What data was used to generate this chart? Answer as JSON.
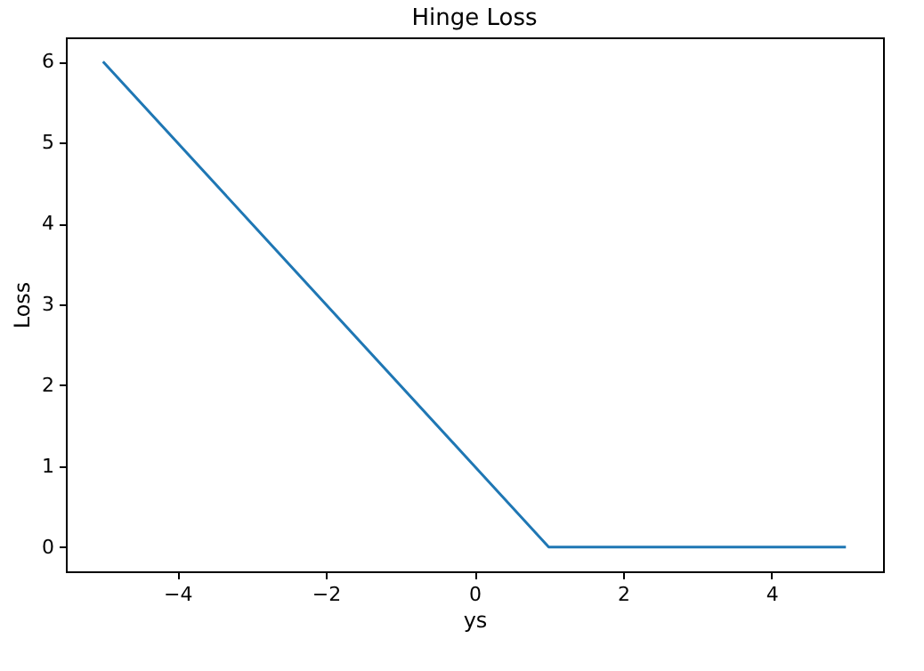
{
  "chart_data": {
    "type": "line",
    "title": "Hinge Loss",
    "xlabel": "ys",
    "ylabel": "Loss",
    "x": [
      -5,
      1,
      5
    ],
    "series": [
      {
        "color": "#1f77b4",
        "values": [
          6,
          0,
          0
        ]
      }
    ],
    "xlim": [
      -5.5,
      5.5
    ],
    "xticks": [
      -4,
      -2,
      0,
      2,
      4
    ],
    "ylim": [
      -0.3,
      6.3
    ],
    "yticks": [
      0,
      1,
      2,
      3,
      4,
      5,
      6
    ],
    "grid": false
  }
}
